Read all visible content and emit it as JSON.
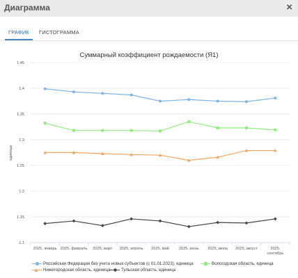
{
  "dialog": {
    "title": "Диаграмма",
    "close_icon": "×"
  },
  "tabs": [
    {
      "label": "ГРАФИК",
      "active": true
    },
    {
      "label": "ГИСТОГРАММА",
      "active": false
    }
  ],
  "chart_data": {
    "type": "line",
    "title": "Суммарный коэффициент рождаемости (Я1)",
    "ylabel": "единица",
    "xlabel": "",
    "ylim": [
      1.1,
      1.45
    ],
    "yticks": [
      "1.1",
      "1.15",
      "1.2",
      "1.25",
      "1.3",
      "1.35",
      "1.4",
      "1.45"
    ],
    "grid": true,
    "legend_position": "bottom",
    "categories": [
      [
        "2025, январь"
      ],
      [
        "2025, февраль"
      ],
      [
        "2025, март"
      ],
      [
        "2025, апрель"
      ],
      [
        "2025, май"
      ],
      [
        "2025, июнь"
      ],
      [
        "2025, июль"
      ],
      [
        "2025, август"
      ],
      [
        "2025,",
        "сентябрь"
      ]
    ],
    "series": [
      {
        "name": "Российская Федерация без учета новых субъектов (с 01.01.2023), единица",
        "color": "#7cb5ec",
        "marker": "circle",
        "values": [
          1.399,
          1.393,
          1.39,
          1.387,
          1.375,
          1.378,
          1.375,
          1.374,
          1.381
        ]
      },
      {
        "name": "Вологодская область, единица",
        "color": "#90ed7d",
        "marker": "square",
        "values": [
          1.332,
          1.318,
          1.318,
          1.318,
          1.317,
          1.335,
          1.323,
          1.323,
          1.319
        ]
      },
      {
        "name": "Нижегородская область, единица",
        "color": "#f7a35c",
        "marker": "triangle",
        "values": [
          1.275,
          1.275,
          1.273,
          1.271,
          1.27,
          1.26,
          1.266,
          1.279,
          1.279
        ]
      },
      {
        "name": "Тульская область, единица",
        "color": "#434348",
        "marker": "diamond",
        "values": [
          1.137,
          1.142,
          1.133,
          1.146,
          1.142,
          1.131,
          1.139,
          1.138,
          1.146
        ]
      }
    ]
  }
}
